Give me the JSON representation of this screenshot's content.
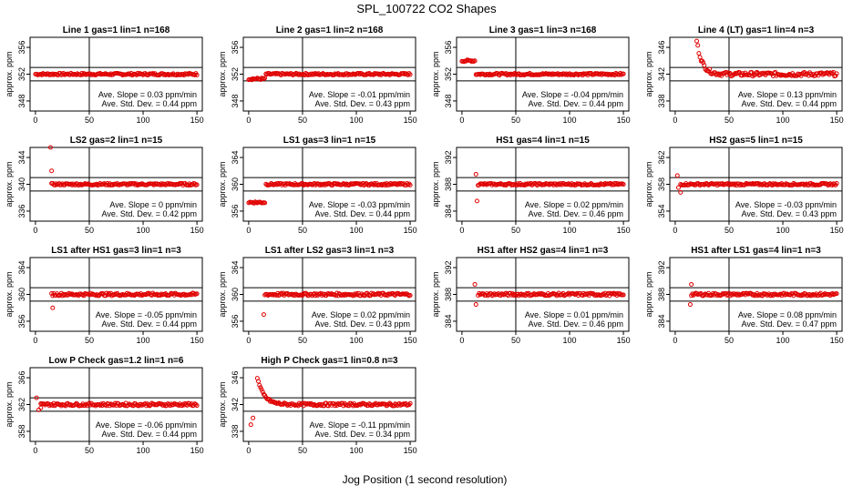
{
  "figure": {
    "title": "SPL_100722  CO2 Shapes",
    "xlabel": "Jog Position (1 second resolution)"
  },
  "chart_data": [
    {
      "type": "scatter",
      "title": "Line 1 gas=1 lin=1 n=168",
      "ylabel": "approx. ppm",
      "xlim": [
        -5,
        155
      ],
      "ylim": [
        346.5,
        357.5
      ],
      "xticks": [
        0,
        50,
        100,
        150
      ],
      "yticks": [
        348,
        352,
        356
      ],
      "hlines": [
        353,
        351
      ],
      "vline": 50,
      "series": [
        {
          "start": 0,
          "end": 150,
          "base": 352,
          "noise": 0.15,
          "segments": []
        }
      ],
      "slope": "Ave. Slope = 0.03 ppm/min",
      "std": "Ave. Std. Dev. = 0.44 ppm"
    },
    {
      "type": "scatter",
      "title": "Line 2 gas=1 lin=2 n=168",
      "ylabel": "approx. ppm",
      "xlim": [
        -5,
        155
      ],
      "ylim": [
        346.5,
        357.5
      ],
      "xticks": [
        0,
        50,
        100,
        150
      ],
      "yticks": [
        348,
        352,
        356
      ],
      "hlines": [
        353,
        351
      ],
      "vline": 50,
      "series": [
        {
          "start": 0,
          "end": 150,
          "base": 352,
          "noise": 0.15,
          "segments": [
            [
              0,
              15,
              351.3
            ]
          ]
        }
      ],
      "slope": "Ave. Slope = -0.01 ppm/min",
      "std": "Ave. Std. Dev. = 0.43 ppm"
    },
    {
      "type": "scatter",
      "title": "Line 3 gas=1 lin=3 n=168",
      "ylabel": "approx. ppm",
      "xlim": [
        -5,
        155
      ],
      "ylim": [
        346.5,
        357.5
      ],
      "xticks": [
        0,
        50,
        100,
        150
      ],
      "yticks": [
        348,
        352,
        356
      ],
      "hlines": [
        353,
        351
      ],
      "vline": 50,
      "series": [
        {
          "start": 0,
          "end": 150,
          "base": 352,
          "noise": 0.15,
          "segments": [
            [
              0,
              12,
              354
            ]
          ]
        }
      ],
      "slope": "Ave. Slope = -0.04 ppm/min",
      "std": "Ave. Std. Dev. = 0.44 ppm"
    },
    {
      "type": "scatter",
      "title": "Line 4 (LT) gas=1 lin=4 n=3",
      "ylabel": "approx. ppm",
      "xlim": [
        -5,
        155
      ],
      "ylim": [
        336.5,
        347.5
      ],
      "xticks": [
        0,
        50,
        100,
        150
      ],
      "yticks": [
        338,
        342,
        346
      ],
      "hlines": [
        343,
        341
      ],
      "vline": 50,
      "series": [
        {
          "start": 20,
          "end": 150,
          "base": 342,
          "noise": 0.3,
          "decay": [
            20,
            347,
            5
          ]
        }
      ],
      "slope": "Ave. Slope = 0.13 ppm/min",
      "std": "Ave. Std. Dev. = 0.44 ppm"
    },
    {
      "type": "scatter",
      "title": "LS2 gas=2 lin=1 n=15",
      "ylabel": "approx. ppm",
      "xlim": [
        -5,
        155
      ],
      "ylim": [
        334.5,
        345.5
      ],
      "xticks": [
        0,
        50,
        100,
        150
      ],
      "yticks": [
        336,
        340,
        344
      ],
      "hlines": [
        341,
        339
      ],
      "vline": 50,
      "series": [
        {
          "start": 15,
          "end": 150,
          "base": 340,
          "noise": 0.15,
          "outliers": [
            [
              14,
              345.5
            ],
            [
              15,
              342
            ]
          ]
        }
      ],
      "slope": "Ave. Slope = 0 ppm/min",
      "std": "Ave. Std. Dev. = 0.42 ppm"
    },
    {
      "type": "scatter",
      "title": "LS1 gas=3 lin=1 n=15",
      "ylabel": "approx. ppm",
      "xlim": [
        -5,
        155
      ],
      "ylim": [
        354.5,
        365.5
      ],
      "xticks": [
        0,
        50,
        100,
        150
      ],
      "yticks": [
        356,
        360,
        364
      ],
      "hlines": [
        361,
        359
      ],
      "vline": 50,
      "series": [
        {
          "start": 0,
          "end": 150,
          "base": 360,
          "noise": 0.15,
          "segments": [
            [
              0,
              15,
              357.3
            ]
          ]
        }
      ],
      "slope": "Ave. Slope = -0.03 ppm/min",
      "std": "Ave. Std. Dev. = 0.44 ppm"
    },
    {
      "type": "scatter",
      "title": "HS1 gas=4 lin=1 n=15",
      "ylabel": "approx. ppm",
      "xlim": [
        -5,
        155
      ],
      "ylim": [
        382.5,
        393.5
      ],
      "xticks": [
        0,
        50,
        100,
        150
      ],
      "yticks": [
        384,
        388,
        392
      ],
      "hlines": [
        389,
        387
      ],
      "vline": 50,
      "series": [
        {
          "start": 15,
          "end": 150,
          "base": 388,
          "noise": 0.15,
          "outliers": [
            [
              13,
              389.5
            ],
            [
              14,
              385.5
            ]
          ]
        }
      ],
      "slope": "Ave. Slope = 0.02 ppm/min",
      "std": "Ave. Std. Dev. = 0.46 ppm"
    },
    {
      "type": "scatter",
      "title": "HS2 gas=5 lin=1 n=15",
      "ylabel": "approx. ppm",
      "xlim": [
        -5,
        155
      ],
      "ylim": [
        352.5,
        363.5
      ],
      "xticks": [
        0,
        50,
        100,
        150
      ],
      "yticks": [
        354,
        358,
        362
      ],
      "hlines": [
        359,
        357
      ],
      "vline": 50,
      "series": [
        {
          "start": 5,
          "end": 150,
          "base": 358,
          "noise": 0.15,
          "outliers": [
            [
              2,
              359.3
            ],
            [
              3,
              357.5
            ],
            [
              5,
              356.8
            ]
          ]
        }
      ],
      "slope": "Ave. Slope = -0.03 ppm/min",
      "std": "Ave. Std. Dev. = 0.43 ppm"
    },
    {
      "type": "scatter",
      "title": "LS1 after HS1 gas=3 lin=1 n=3",
      "ylabel": "approx. ppm",
      "xlim": [
        -5,
        155
      ],
      "ylim": [
        354.5,
        365.5
      ],
      "xticks": [
        0,
        50,
        100,
        150
      ],
      "yticks": [
        356,
        360,
        364
      ],
      "hlines": [
        361,
        359
      ],
      "vline": 50,
      "series": [
        {
          "start": 15,
          "end": 150,
          "base": 360,
          "noise": 0.2,
          "outliers": [
            [
              16,
              358
            ]
          ]
        }
      ],
      "slope": "Ave. Slope = -0.05 ppm/min",
      "std": "Ave. Std. Dev. = 0.44 ppm"
    },
    {
      "type": "scatter",
      "title": "LS1 after LS2 gas=3 lin=1 n=3",
      "ylabel": "approx. ppm",
      "xlim": [
        -5,
        155
      ],
      "ylim": [
        354.5,
        365.5
      ],
      "xticks": [
        0,
        50,
        100,
        150
      ],
      "yticks": [
        356,
        360,
        364
      ],
      "hlines": [
        361,
        359
      ],
      "vline": 50,
      "series": [
        {
          "start": 15,
          "end": 150,
          "base": 360,
          "noise": 0.2,
          "outliers": [
            [
              14,
              357
            ]
          ]
        }
      ],
      "slope": "Ave. Slope = 0.02 ppm/min",
      "std": "Ave. Std. Dev. = 0.43 ppm"
    },
    {
      "type": "scatter",
      "title": "HS1 after HS2 gas=4 lin=1 n=3",
      "ylabel": "approx. ppm",
      "xlim": [
        -5,
        155
      ],
      "ylim": [
        382.5,
        393.5
      ],
      "xticks": [
        0,
        50,
        100,
        150
      ],
      "yticks": [
        384,
        388,
        392
      ],
      "hlines": [
        389,
        387
      ],
      "vline": 50,
      "series": [
        {
          "start": 15,
          "end": 150,
          "base": 388,
          "noise": 0.2,
          "outliers": [
            [
              12,
              389.5
            ],
            [
              13,
              386.5
            ]
          ]
        }
      ],
      "slope": "Ave. Slope = 0.01 ppm/min",
      "std": "Ave. Std. Dev. = 0.46 ppm"
    },
    {
      "type": "scatter",
      "title": "HS1 after LS1 gas=4 lin=1 n=3",
      "ylabel": "approx. ppm",
      "xlim": [
        -5,
        155
      ],
      "ylim": [
        382.5,
        393.5
      ],
      "xticks": [
        0,
        50,
        100,
        150
      ],
      "yticks": [
        384,
        388,
        392
      ],
      "hlines": [
        389,
        387
      ],
      "vline": 50,
      "series": [
        {
          "start": 15,
          "end": 150,
          "base": 388,
          "noise": 0.2,
          "outliers": [
            [
              14,
              386.5
            ],
            [
              15,
              389.5
            ]
          ]
        }
      ],
      "slope": "Ave. Slope = 0.08 ppm/min",
      "std": "Ave. Std. Dev. = 0.47 ppm"
    },
    {
      "type": "scatter",
      "title": "Low P Check gas=1.2 lin=1 n=6",
      "ylabel": "approx. ppm",
      "xlim": [
        -5,
        155
      ],
      "ylim": [
        356.5,
        367.5
      ],
      "xticks": [
        0,
        50,
        100,
        150
      ],
      "yticks": [
        358,
        362,
        366
      ],
      "hlines": [
        363,
        361
      ],
      "vline": 50,
      "series": [
        {
          "start": 5,
          "end": 150,
          "base": 362,
          "noise": 0.2,
          "outliers": [
            [
              1,
              363
            ],
            [
              3,
              361.2
            ],
            [
              5,
              361.5
            ]
          ]
        }
      ],
      "slope": "Ave. Slope = -0.06 ppm/min",
      "std": "Ave. Std. Dev. = 0.44 ppm"
    },
    {
      "type": "scatter",
      "title": "High P Check gas=1 lin=0.8 n=3",
      "ylabel": "approx. ppm",
      "xlim": [
        -5,
        155
      ],
      "ylim": [
        336.5,
        347.5
      ],
      "xticks": [
        0,
        50,
        100,
        150
      ],
      "yticks": [
        338,
        342,
        346
      ],
      "hlines": [
        343,
        341
      ],
      "vline": 50,
      "series": [
        {
          "start": 8,
          "end": 150,
          "base": 342,
          "noise": 0.2,
          "decay": [
            8,
            346,
            6
          ]
        }
      ],
      "outliers_extra": [
        [
          2,
          339
        ],
        [
          4,
          340
        ]
      ],
      "slope": "Ave. Slope = -0.11 ppm/min",
      "std": "Ave. Std. Dev. = 0.34 ppm"
    }
  ]
}
